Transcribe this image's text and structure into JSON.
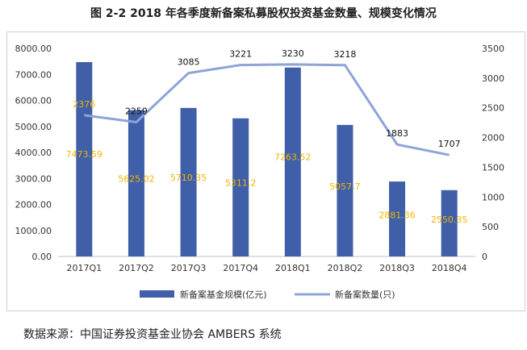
{
  "figure_title": "图 2-2 2018 年各季度新备案私募股权投资基金数量、规模变化情况",
  "source_note": "数据来源：中国证券投资基金业协会 AMBERS 系统",
  "chart_data": {
    "type": "bar",
    "categories": [
      "2017Q1",
      "2017Q2",
      "2017Q3",
      "2017Q4",
      "2018Q1",
      "2018Q2",
      "2018Q3",
      "2018Q4"
    ],
    "series": [
      {
        "name": "新备案基金规模(亿元)",
        "type": "bar",
        "axis": "left",
        "values": [
          7473.59,
          5625.02,
          5710.35,
          5311.2,
          7263.52,
          5057.7,
          2881.36,
          2550.35
        ],
        "labels": [
          "7473.59",
          "5625.02",
          "5710.35",
          "5311.2",
          "7263.52",
          "5057.7",
          "2881.36",
          "2550.35"
        ],
        "color": "#3f5fa8",
        "label_color": "#f5b400"
      },
      {
        "name": "新备案数量(只)",
        "type": "line",
        "axis": "right",
        "values": [
          2376,
          2259,
          3085,
          3221,
          3230,
          3218,
          1883,
          1707
        ],
        "labels": [
          "2376",
          "2259",
          "3085",
          "3221",
          "3230",
          "3218",
          "1883",
          "1707"
        ],
        "color": "#8ea3d8",
        "label_color": "#111111"
      }
    ],
    "y_left": {
      "min": 0,
      "max": 8000,
      "step": 1000,
      "ticks": [
        "0.00",
        "1000.00",
        "2000.00",
        "3000.00",
        "4000.00",
        "5000.00",
        "6000.00",
        "7000.00",
        "8000.00"
      ]
    },
    "y_right": {
      "min": 0,
      "max": 3500,
      "step": 500,
      "ticks": [
        "0",
        "500",
        "1000",
        "1500",
        "2000",
        "2500",
        "3000",
        "3500"
      ]
    },
    "grid": false,
    "legend_position": "bottom"
  }
}
